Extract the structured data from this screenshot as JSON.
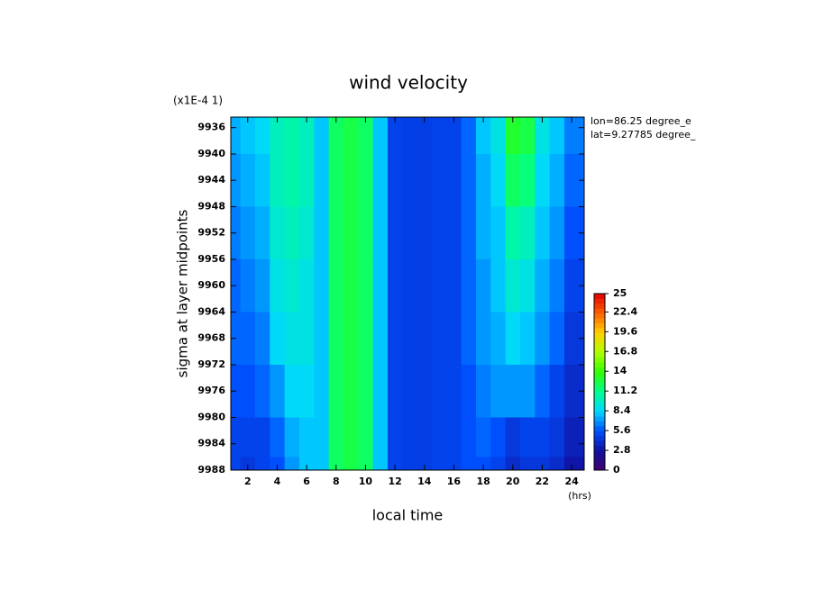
{
  "chart_data": {
    "type": "contour",
    "title": "wind velocity",
    "scale_note": "(x1E-4 1)",
    "annotations": [
      "lon=86.25 degree_e",
      "lat=9.27785 degree_"
    ],
    "xlabel": "local time",
    "xunits": "(hrs)",
    "ylabel": "sigma at layer midpoints",
    "x": [
      1,
      2,
      3,
      4,
      5,
      6,
      7,
      8,
      9,
      10,
      11,
      12,
      13,
      14,
      15,
      16,
      17,
      18,
      19,
      20,
      21,
      22,
      23,
      24
    ],
    "y": [
      9936,
      9944,
      9952,
      9960,
      9968,
      9976,
      9984,
      9988
    ],
    "z": [
      [
        7.5,
        8,
        8.5,
        10,
        10.5,
        10,
        8,
        12,
        12.5,
        12,
        8,
        5,
        4.8,
        4.8,
        5,
        5,
        6,
        8,
        9,
        13,
        12.5,
        9,
        8,
        6.5
      ],
      [
        7,
        7.5,
        8,
        10,
        10.5,
        10,
        8,
        12,
        12.5,
        12,
        8,
        5,
        4.8,
        4.8,
        5,
        5,
        6,
        7.5,
        8.5,
        12,
        11.5,
        8.5,
        7.5,
        6
      ],
      [
        6.5,
        7,
        7.5,
        9.5,
        10,
        9.5,
        8,
        12,
        12.5,
        12,
        8,
        5,
        4.8,
        4.8,
        5,
        5,
        6,
        7.5,
        8,
        10.5,
        10,
        8,
        7,
        5.5
      ],
      [
        6,
        6.5,
        7,
        9,
        9.5,
        9,
        8,
        12,
        12.5,
        12,
        8,
        5,
        4.8,
        4.8,
        5,
        5,
        6,
        7,
        8,
        9.5,
        9,
        7.5,
        6.5,
        5
      ],
      [
        6,
        6,
        6.5,
        8.5,
        9,
        9,
        8,
        12,
        12.5,
        12,
        8,
        5,
        4.8,
        4.8,
        5,
        5,
        6,
        7,
        7.5,
        8.5,
        8,
        7,
        6,
        4.5
      ],
      [
        5.5,
        5.5,
        6,
        7,
        8.5,
        8.5,
        8,
        12,
        12.5,
        12,
        8,
        5,
        4.8,
        4.8,
        5,
        5,
        5.5,
        6.5,
        7,
        7,
        7,
        6,
        5,
        4
      ],
      [
        5,
        5,
        5,
        6,
        7.5,
        8,
        8,
        12,
        12.5,
        12,
        8,
        5,
        4.8,
        4.8,
        5,
        5,
        5.5,
        6,
        5.5,
        4.5,
        5,
        5,
        4.5,
        3.5
      ],
      [
        5,
        4.5,
        5,
        5.5,
        7,
        8,
        8,
        12,
        12.5,
        12,
        8,
        5,
        4.8,
        4.8,
        5,
        5,
        5.5,
        5.5,
        5,
        4,
        4.5,
        4.5,
        4,
        3
      ]
    ],
    "xlim": [
      0.85,
      24.85
    ],
    "xticks": [
      2,
      4,
      6,
      8,
      10,
      12,
      14,
      16,
      18,
      20,
      22,
      24
    ],
    "ylim": [
      9934.4,
      9988
    ],
    "y_reversed": true,
    "yticks": [
      9936,
      9940,
      9944,
      9948,
      9952,
      9956,
      9960,
      9964,
      9968,
      9972,
      9976,
      9980,
      9984,
      9988
    ],
    "zlim": [
      0,
      25
    ],
    "zticks": [
      0,
      2.8,
      5.6,
      8.4,
      11.2,
      14,
      16.8,
      19.6,
      22.4,
      25
    ],
    "colormap": [
      "#400070",
      "#1010a0",
      "#0050ff",
      "#00d8ff",
      "#00ff90",
      "#30ff00",
      "#b0ff00",
      "#ffd000",
      "#ff6000",
      "#e00000"
    ]
  }
}
